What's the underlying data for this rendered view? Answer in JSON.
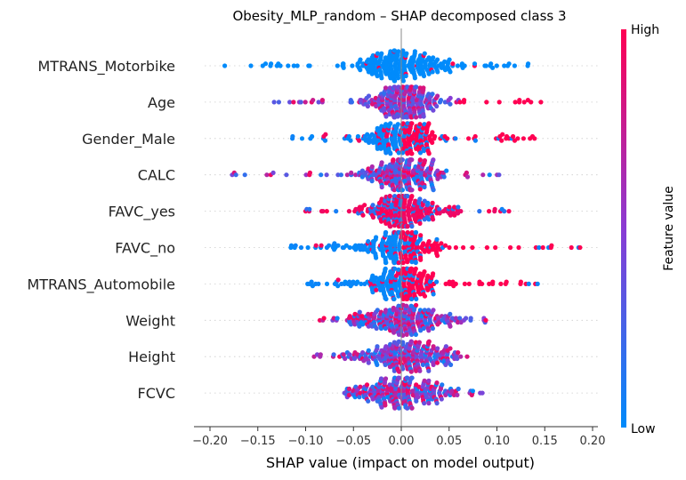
{
  "chart_data": {
    "type": "scatter",
    "subtype": "shap-beeswarm",
    "title": "Obesity_MLP_random – SHAP decomposed class 3",
    "xlabel": "SHAP value (impact on model output)",
    "xlim": [
      -0.21,
      0.205
    ],
    "x_ticks": [
      -0.2,
      -0.15,
      -0.1,
      -0.05,
      0.0,
      0.05,
      0.1,
      0.15,
      0.2
    ],
    "x_tick_labels": [
      "−0.20",
      "−0.15",
      "−0.10",
      "−0.05",
      "0.00",
      "0.05",
      "0.10",
      "0.15",
      "0.20"
    ],
    "grid": "horizontal dotted per feature",
    "colorbar": {
      "label": "Feature value",
      "high_label": "High",
      "low_label": "Low",
      "low_color": "#008bfb",
      "high_color": "#ff0052"
    },
    "features": [
      {
        "name": "MTRANS_Motorbike",
        "min": -0.19,
        "max": 0.14,
        "spread": 0.025,
        "mode": "low-center",
        "count": 260
      },
      {
        "name": "Age",
        "min": -0.135,
        "max": 0.15,
        "spread": 0.02,
        "mode": "mixed-pos-high",
        "count": 260
      },
      {
        "name": "Gender_Male",
        "min": -0.115,
        "max": 0.14,
        "spread": 0.02,
        "mode": "low-neg-high-pos",
        "count": 260
      },
      {
        "name": "CALC",
        "min": -0.18,
        "max": 0.105,
        "spread": 0.02,
        "mode": "mixed",
        "count": 260
      },
      {
        "name": "FAVC_yes",
        "min": -0.1,
        "max": 0.115,
        "spread": 0.02,
        "mode": "high-center",
        "count": 260
      },
      {
        "name": "FAVC_no",
        "min": -0.12,
        "max": 0.19,
        "spread": 0.02,
        "mode": "low-neg-high-pos",
        "count": 260
      },
      {
        "name": "MTRANS_Automobile",
        "min": -0.1,
        "max": 0.145,
        "spread": 0.02,
        "mode": "low-neg-high-pos",
        "count": 260
      },
      {
        "name": "Weight",
        "min": -0.09,
        "max": 0.09,
        "spread": 0.025,
        "mode": "mixed",
        "count": 260
      },
      {
        "name": "Height",
        "min": -0.11,
        "max": 0.07,
        "spread": 0.025,
        "mode": "mixed",
        "count": 260
      },
      {
        "name": "FCVC",
        "min": -0.065,
        "max": 0.085,
        "spread": 0.025,
        "mode": "mixed",
        "count": 260
      }
    ]
  }
}
